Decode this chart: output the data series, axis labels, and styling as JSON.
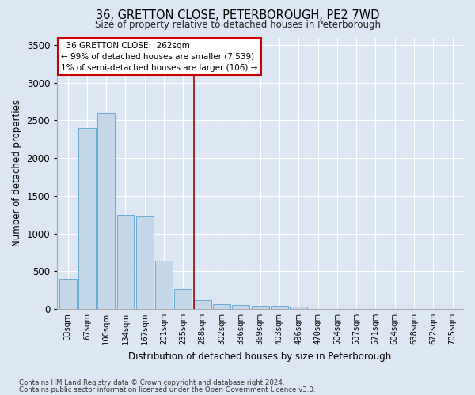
{
  "title": "36, GRETTON CLOSE, PETERBOROUGH, PE2 7WD",
  "subtitle": "Size of property relative to detached houses in Peterborough",
  "xlabel": "Distribution of detached houses by size in Peterborough",
  "ylabel": "Number of detached properties",
  "footnote1": "Contains HM Land Registry data © Crown copyright and database right 2024.",
  "footnote2": "Contains public sector information licensed under the Open Government Licence v3.0.",
  "categories": [
    "33sqm",
    "67sqm",
    "100sqm",
    "134sqm",
    "167sqm",
    "201sqm",
    "235sqm",
    "268sqm",
    "302sqm",
    "336sqm",
    "369sqm",
    "403sqm",
    "436sqm",
    "470sqm",
    "504sqm",
    "537sqm",
    "571sqm",
    "604sqm",
    "638sqm",
    "672sqm",
    "705sqm"
  ],
  "values": [
    400,
    2400,
    2600,
    1250,
    1230,
    640,
    260,
    110,
    65,
    55,
    45,
    38,
    30,
    0,
    0,
    0,
    0,
    0,
    0,
    0,
    0
  ],
  "bar_color": "#c5d8eb",
  "bar_edge_color": "#6aaad4",
  "background_color": "#dce7f3",
  "grid_color": "#ffffff",
  "annotation_line1": "  36 GRETTON CLOSE:  262sqm",
  "annotation_line2": "← 99% of detached houses are smaller (7,539)",
  "annotation_line3": "1% of semi-detached houses are larger (106) →",
  "annotation_box_facecolor": "#ffffff",
  "annotation_box_edgecolor": "#cc0000",
  "vline_color": "#aa0000",
  "vline_x_index": 7,
  "ylim": [
    0,
    3600
  ],
  "yticks": [
    0,
    500,
    1000,
    1500,
    2000,
    2500,
    3000,
    3500
  ]
}
